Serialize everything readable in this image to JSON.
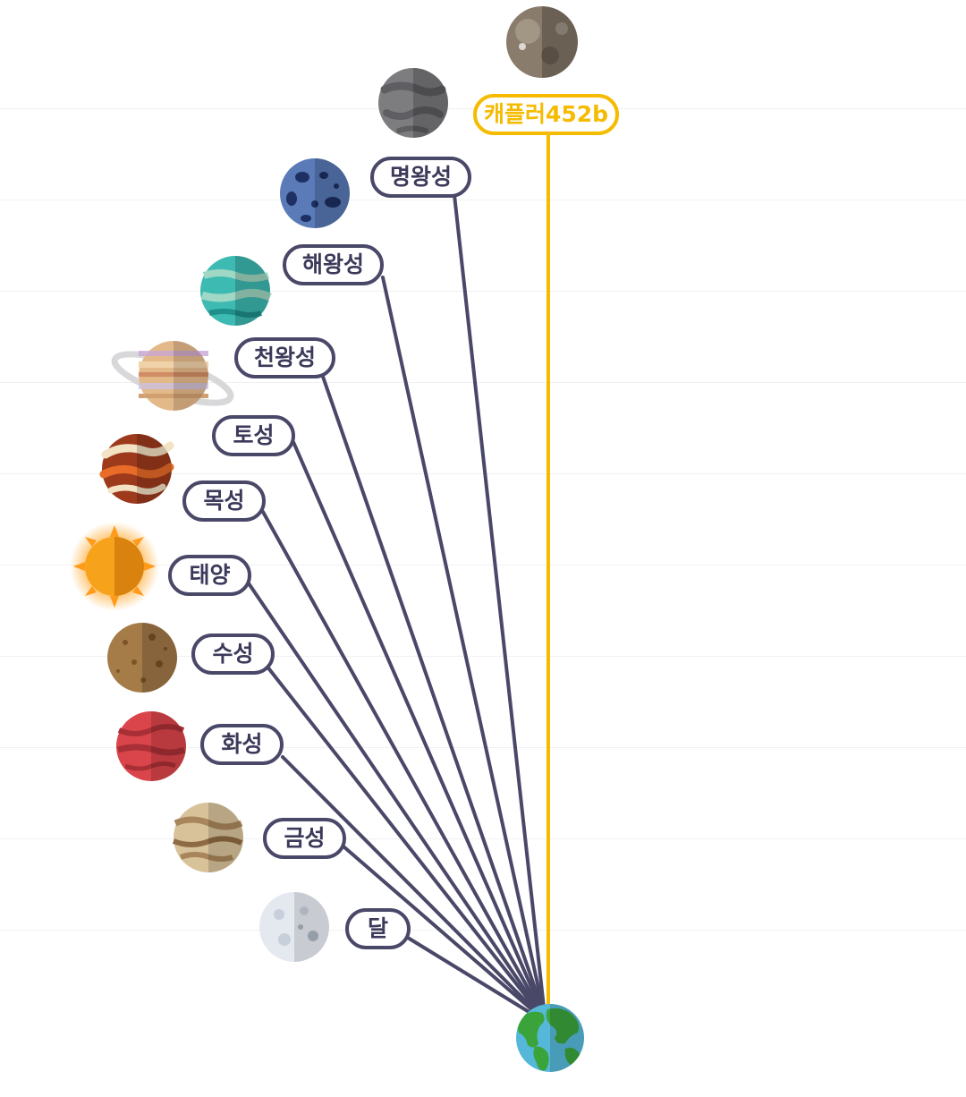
{
  "bodies": [
    {
      "key": "kepler452b",
      "label": "캐플러452b",
      "highlight": true
    },
    {
      "key": "pluto",
      "label": "명왕성"
    },
    {
      "key": "neptune",
      "label": "해왕성"
    },
    {
      "key": "uranus",
      "label": "천왕성"
    },
    {
      "key": "saturn",
      "label": "토성"
    },
    {
      "key": "jupiter",
      "label": "목성"
    },
    {
      "key": "sun",
      "label": "태양"
    },
    {
      "key": "mercury",
      "label": "수성"
    },
    {
      "key": "mars",
      "label": "화성"
    },
    {
      "key": "venus",
      "label": "금성"
    },
    {
      "key": "moon",
      "label": "달"
    }
  ],
  "colors": {
    "line": "#4a4868",
    "highlight": "#f5bb00",
    "earth_land": "#3aa33a",
    "earth_ocean": "#55b8d8"
  }
}
